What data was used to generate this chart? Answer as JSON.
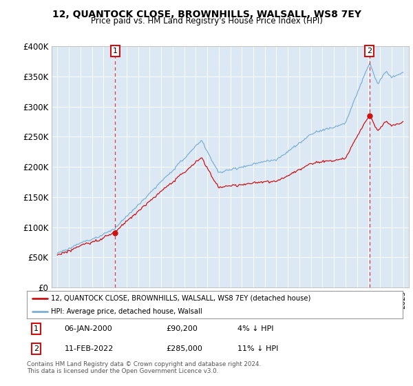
{
  "title": "12, QUANTOCK CLOSE, BROWNHILLS, WALSALL, WS8 7EY",
  "subtitle": "Price paid vs. HM Land Registry's House Price Index (HPI)",
  "ylim": [
    0,
    400000
  ],
  "yticks": [
    0,
    50000,
    100000,
    150000,
    200000,
    250000,
    300000,
    350000,
    400000
  ],
  "ytick_labels": [
    "£0",
    "£50K",
    "£100K",
    "£150K",
    "£200K",
    "£250K",
    "£300K",
    "£350K",
    "£400K"
  ],
  "hpi_color": "#7ab0d4",
  "price_color": "#cc1111",
  "legend_line1": "12, QUANTOCK CLOSE, BROWNHILLS, WALSALL, WS8 7EY (detached house)",
  "legend_line2": "HPI: Average price, detached house, Walsall",
  "footer": "Contains HM Land Registry data © Crown copyright and database right 2024.\nThis data is licensed under the Open Government Licence v3.0.",
  "bg_plot": "#dce9f5",
  "bg_fig": "#ffffff",
  "grid_color": "#ffffff"
}
